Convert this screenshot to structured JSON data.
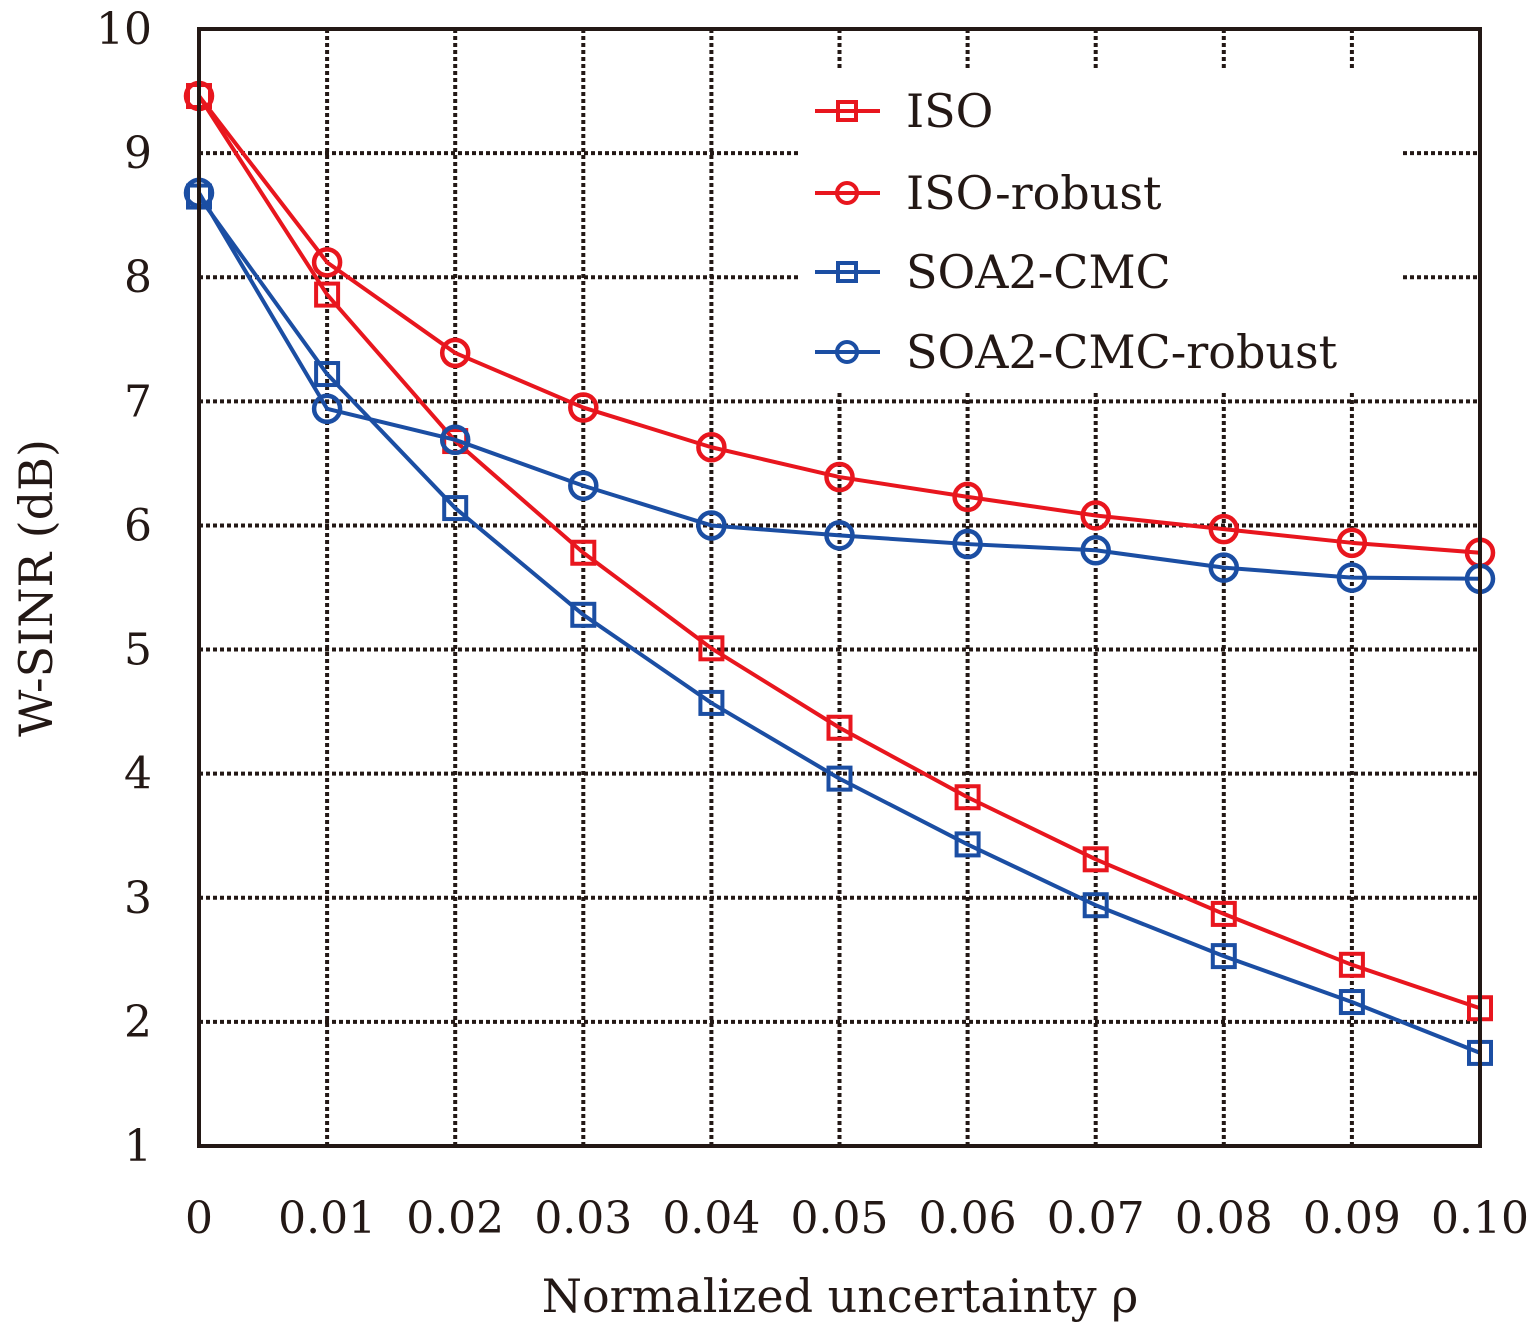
{
  "chart_data": {
    "type": "line",
    "title": "",
    "xlabel": "Normalized uncertainty ρ",
    "ylabel": "W-SINR (dB)",
    "x": [
      0,
      0.01,
      0.02,
      0.03,
      0.04,
      0.05,
      0.06,
      0.07,
      0.08,
      0.09,
      0.1
    ],
    "xticks": [
      "0",
      "0.01",
      "0.02",
      "0.03",
      "0.04",
      "0.05",
      "0.06",
      "0.07",
      "0.08",
      "0.09",
      "0.10"
    ],
    "yticks": [
      "1",
      "2",
      "3",
      "4",
      "5",
      "6",
      "7",
      "8",
      "9",
      "10"
    ],
    "xlim": [
      0,
      0.1
    ],
    "ylim": [
      1,
      10
    ],
    "grid": true,
    "legend_position": "top-right",
    "series": [
      {
        "name": "ISO",
        "color": "#e8161e",
        "marker": "square",
        "values": [
          9.46,
          7.86,
          6.68,
          5.78,
          5.01,
          4.37,
          3.81,
          3.31,
          2.87,
          2.46,
          2.11
        ]
      },
      {
        "name": "ISO-robust",
        "color": "#e8161e",
        "marker": "circle",
        "values": [
          9.46,
          8.12,
          7.39,
          6.95,
          6.63,
          6.39,
          6.23,
          6.08,
          5.97,
          5.86,
          5.78
        ]
      },
      {
        "name": "SOA2-CMC",
        "color": "#1b4ea3",
        "marker": "square",
        "values": [
          8.65,
          7.22,
          6.14,
          5.28,
          4.57,
          3.96,
          3.43,
          2.94,
          2.53,
          2.16,
          1.75
        ]
      },
      {
        "name": "SOA2-CMC-robust",
        "color": "#1b4ea3",
        "marker": "circle",
        "values": [
          8.68,
          6.94,
          6.69,
          6.32,
          6.0,
          5.92,
          5.85,
          5.8,
          5.66,
          5.58,
          5.57
        ]
      }
    ]
  }
}
